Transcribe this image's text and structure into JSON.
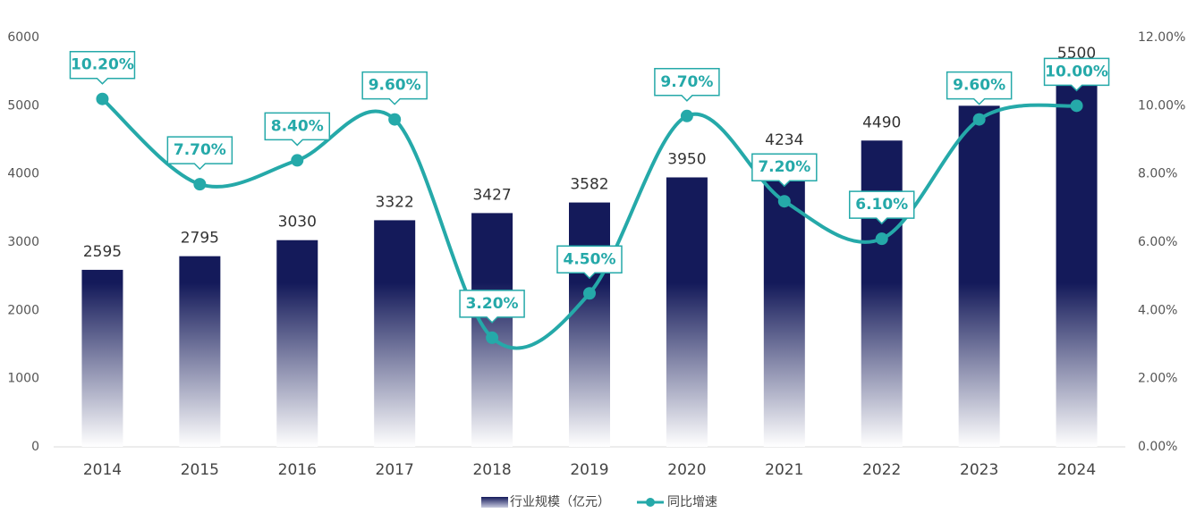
{
  "chart_data": {
    "type": "bar-line",
    "categories": [
      "2014",
      "2015",
      "2016",
      "2017",
      "2018",
      "2019",
      "2020",
      "2021",
      "2022",
      "2023",
      "2024"
    ],
    "series": [
      {
        "name": "行业规模（亿元）",
        "type": "bar",
        "color": "#141a5a",
        "values": [
          2595,
          2795,
          3030,
          3322,
          3427,
          3582,
          3950,
          4234,
          4490,
          5000,
          5500
        ]
      },
      {
        "name": "同比增速",
        "type": "line",
        "axis": "y2",
        "color": "#25a9a9",
        "values": [
          10.2,
          7.7,
          8.4,
          9.6,
          3.2,
          4.5,
          9.7,
          7.2,
          6.1,
          9.6,
          10.0
        ],
        "value_labels": [
          "10.20%",
          "7.70%",
          "8.40%",
          "9.60%",
          "3.20%",
          "4.50%",
          "9.70%",
          "7.20%",
          "6.10%",
          "9.60%",
          "10.00%"
        ]
      }
    ],
    "ylim": [
      0,
      6000
    ],
    "yticks": [
      0,
      1000,
      2000,
      3000,
      4000,
      5000,
      6000
    ],
    "y2lim": [
      0,
      12
    ],
    "y2ticks": [
      {
        "value": 0,
        "label": "0.00%"
      },
      {
        "value": 2,
        "label": "2.00%"
      },
      {
        "value": 4,
        "label": "4.00%"
      },
      {
        "value": 6,
        "label": "6.00%"
      },
      {
        "value": 8,
        "label": "8.00%"
      },
      {
        "value": 10,
        "label": "10.00%"
      },
      {
        "value": 12,
        "label": "12.00%"
      }
    ],
    "legend": "bottom"
  }
}
